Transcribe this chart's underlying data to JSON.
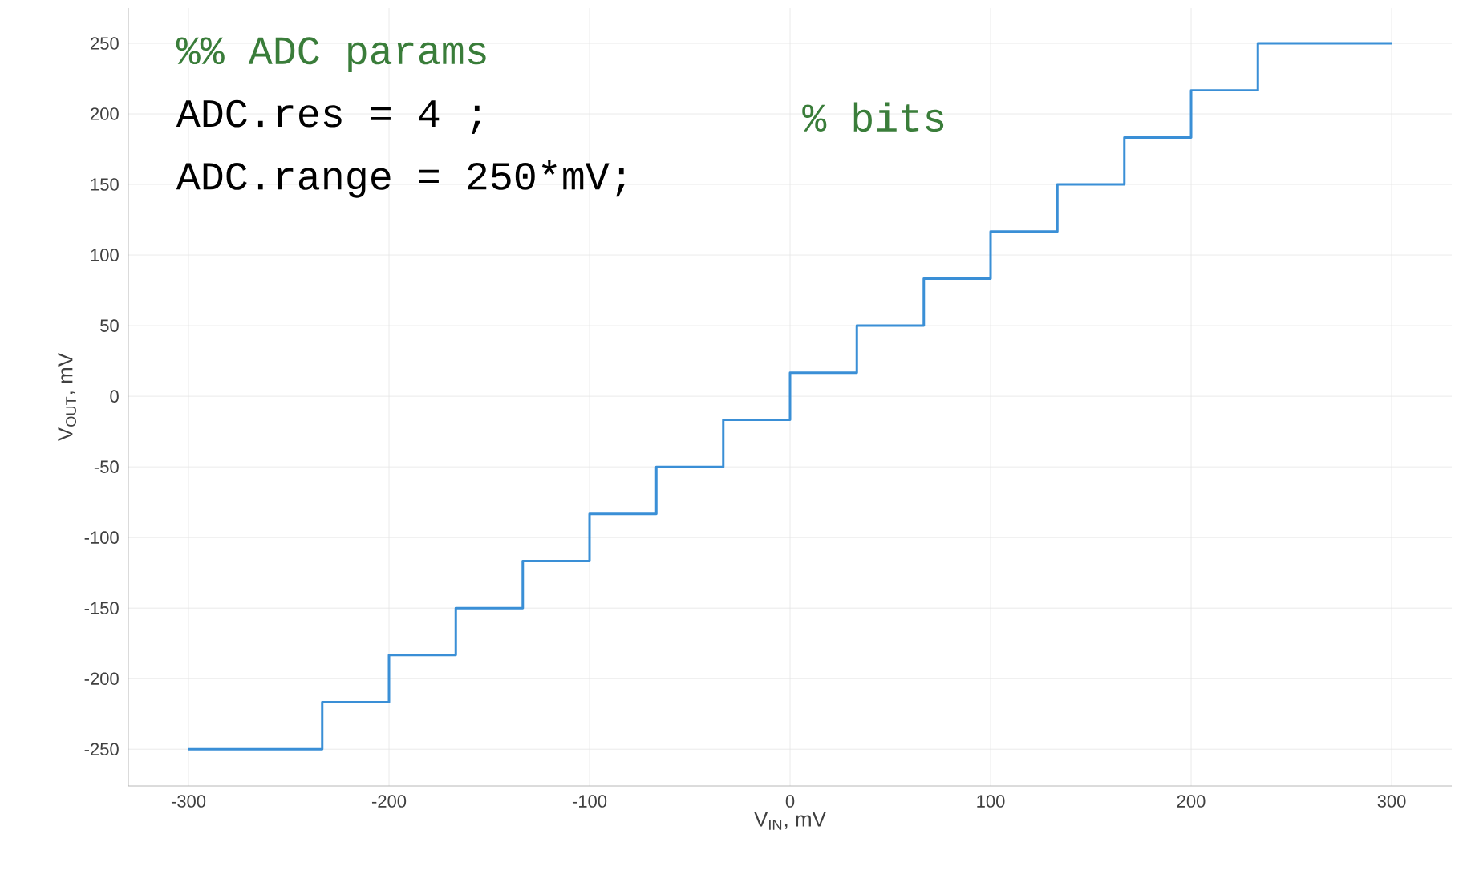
{
  "chart_data": {
    "type": "step",
    "xlabel": "V$_{IN}$, mV",
    "ylabel": "V$_{OUT}$, mV",
    "x": [
      -300,
      -233.3,
      -200,
      -166.7,
      -133.3,
      -100,
      -66.7,
      -33.3,
      0,
      33.3,
      66.7,
      100,
      133.3,
      166.7,
      200,
      233.3,
      300
    ],
    "series": [
      {
        "color": "#3a8fd6",
        "values": [
          -250,
          -216.7,
          -183.3,
          -150,
          -116.7,
          -83.3,
          -50,
          -16.7,
          16.7,
          50,
          83.3,
          116.7,
          150,
          183.3,
          216.7,
          250,
          250
        ]
      }
    ],
    "xlim": [
      -330,
      330
    ],
    "ylim": [
      -276,
      275
    ],
    "xticks": [
      -300,
      -200,
      -100,
      0,
      100,
      200,
      300
    ],
    "yticks": [
      -250,
      -200,
      -150,
      -100,
      -50,
      0,
      50,
      100,
      150,
      200,
      250
    ],
    "grid": true,
    "annotations": [
      "%% ADC params",
      "ADC.res    = 4     ;",
      "% bits",
      "ADC.range = 250*mV;"
    ]
  }
}
